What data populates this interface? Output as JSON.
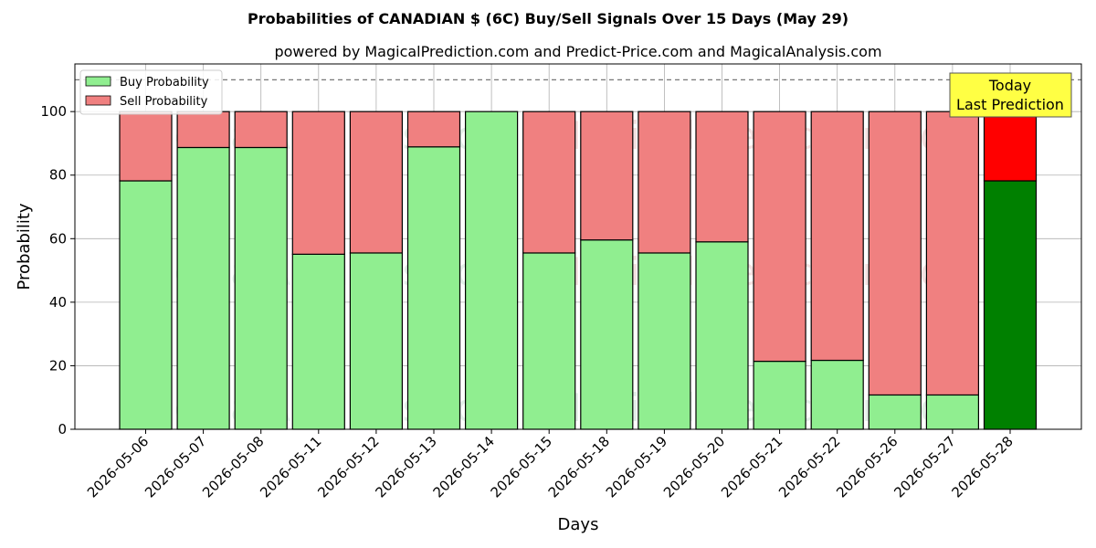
{
  "chart_data": {
    "type": "bar",
    "stacked": true,
    "title": "Probabilities of CANADIAN $ (6C) Buy/Sell Signals Over 15 Days (May 29)",
    "subtitle": "powered by MagicalPrediction.com and Predict-Price.com and MagicalAnalysis.com",
    "xlabel": "Days",
    "ylabel": "Probability",
    "ylim": [
      0,
      115
    ],
    "yticks": [
      0,
      20,
      40,
      60,
      80,
      100
    ],
    "reference_line": 110,
    "grid": true,
    "legend_position": "top-left",
    "categories": [
      "2026-05-06",
      "2026-05-07",
      "2026-05-08",
      "2026-05-11",
      "2026-05-12",
      "2026-05-13",
      "2026-05-14",
      "2026-05-15",
      "2026-05-18",
      "2026-05-19",
      "2026-05-20",
      "2026-05-21",
      "2026-05-22",
      "2026-05-26",
      "2026-05-27",
      "2026-05-28"
    ],
    "series": [
      {
        "name": "Buy Probability",
        "values": [
          78.2,
          88.7,
          88.7,
          55.1,
          55.5,
          88.9,
          100.0,
          55.5,
          59.6,
          55.5,
          59.0,
          21.4,
          21.7,
          10.8,
          10.8,
          78.2
        ]
      },
      {
        "name": "Sell Probability",
        "values": [
          21.8,
          11.3,
          11.3,
          44.9,
          44.5,
          11.1,
          0.0,
          44.5,
          40.4,
          44.5,
          41.0,
          78.6,
          78.3,
          89.2,
          89.2,
          21.8
        ]
      }
    ],
    "colors": {
      "buy": "#90ee90",
      "sell": "#f08080",
      "buy_highlight": "#008000",
      "sell_highlight": "#ff0000",
      "annotation_bg": "#ffff44"
    },
    "annotation": {
      "line1": "Today",
      "line2": "Last Prediction",
      "category_index": 15
    },
    "watermarks": [
      "MagicalAnalysis.com",
      "MagicalPrediction.com"
    ]
  }
}
